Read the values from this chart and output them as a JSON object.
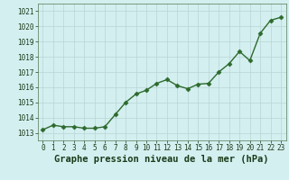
{
  "x": [
    0,
    1,
    2,
    3,
    4,
    5,
    6,
    7,
    8,
    9,
    10,
    11,
    12,
    13,
    14,
    15,
    16,
    17,
    18,
    19,
    20,
    21,
    22,
    23
  ],
  "y": [
    1013.2,
    1013.5,
    1013.4,
    1013.4,
    1013.3,
    1013.3,
    1013.4,
    1014.2,
    1015.0,
    1015.55,
    1015.8,
    1016.25,
    1016.5,
    1016.1,
    1015.9,
    1016.2,
    1016.25,
    1017.0,
    1017.55,
    1018.35,
    1017.75,
    1019.55,
    1020.4,
    1020.6
  ],
  "line_color": "#2d6a2d",
  "marker": "D",
  "marker_size": 2.5,
  "line_width": 1.0,
  "bg_color": "#d4efef",
  "grid_color": "#b8d4d4",
  "xlabel": "Graphe pression niveau de la mer (hPa)",
  "xlabel_fontsize": 7.5,
  "xlabel_color": "#1a3a1a",
  "ylim": [
    1012.5,
    1021.5
  ],
  "yticks": [
    1013,
    1014,
    1015,
    1016,
    1017,
    1018,
    1019,
    1020,
    1021
  ],
  "xticks": [
    0,
    1,
    2,
    3,
    4,
    5,
    6,
    7,
    8,
    9,
    10,
    11,
    12,
    13,
    14,
    15,
    16,
    17,
    18,
    19,
    20,
    21,
    22,
    23
  ],
  "xlim": [
    -0.5,
    23.5
  ],
  "tick_fontsize": 5.5,
  "tick_color": "#1a3a1a",
  "spine_color": "#557755"
}
